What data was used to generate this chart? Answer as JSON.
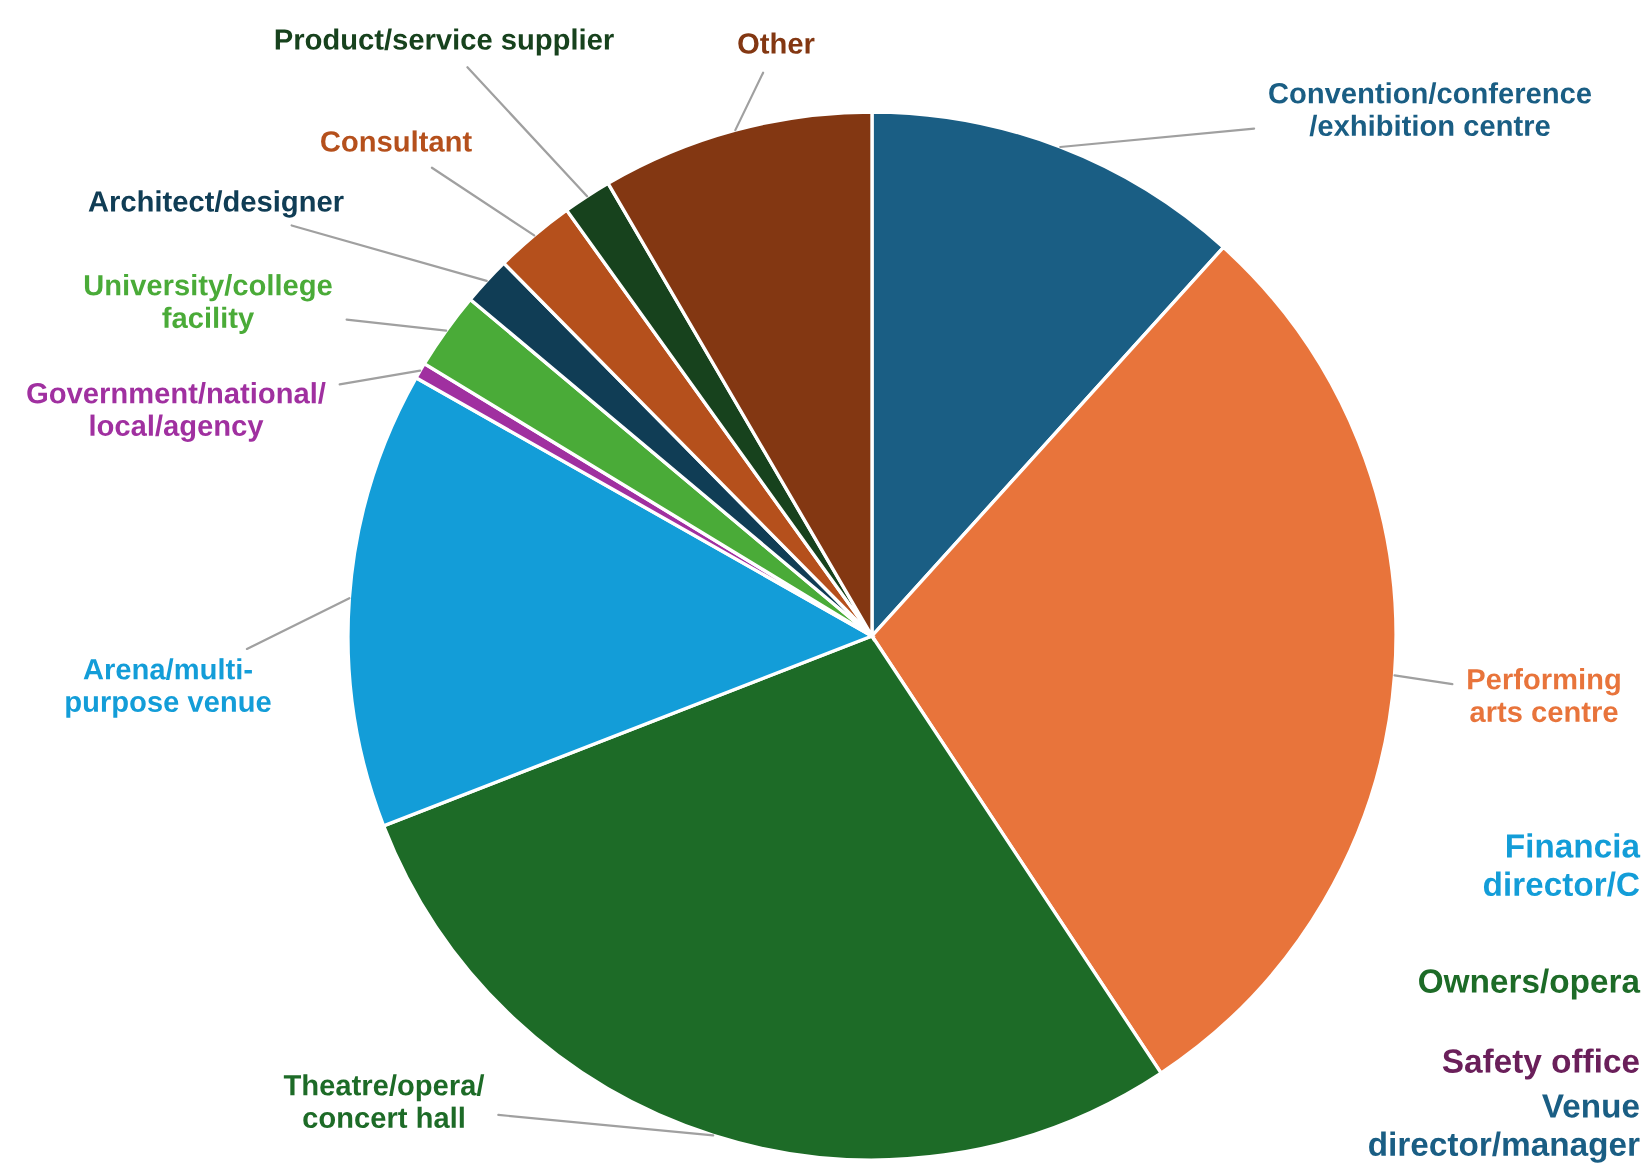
{
  "chart_data": {
    "type": "pie",
    "categories": [
      "Convention/conference\n/exhibition centre",
      "Performing\narts centre",
      "Theatre/opera/\nconcert hall",
      "Arena/multi-\npurpose venue",
      "Government/national/\nlocal/agency",
      "University/college\nfacility",
      "Architect/designer",
      "Consultant",
      "Product/service supplier",
      "Other"
    ],
    "values": [
      11.7,
      29.0,
      28.4,
      14.1,
      0.5,
      2.4,
      1.5,
      2.5,
      1.5,
      8.4
    ],
    "colors": [
      "#1a5e84",
      "#e8743b",
      "#1d6b27",
      "#139dd8",
      "#a030a0",
      "#4aab38",
      "#103d55",
      "#b5501c",
      "#17421d",
      "#833712"
    ],
    "annotations": [
      "Financia\ndirector/C",
      "Owners/opera",
      "Safety office",
      "Venue\ndirector/manager"
    ],
    "legend": false
  }
}
